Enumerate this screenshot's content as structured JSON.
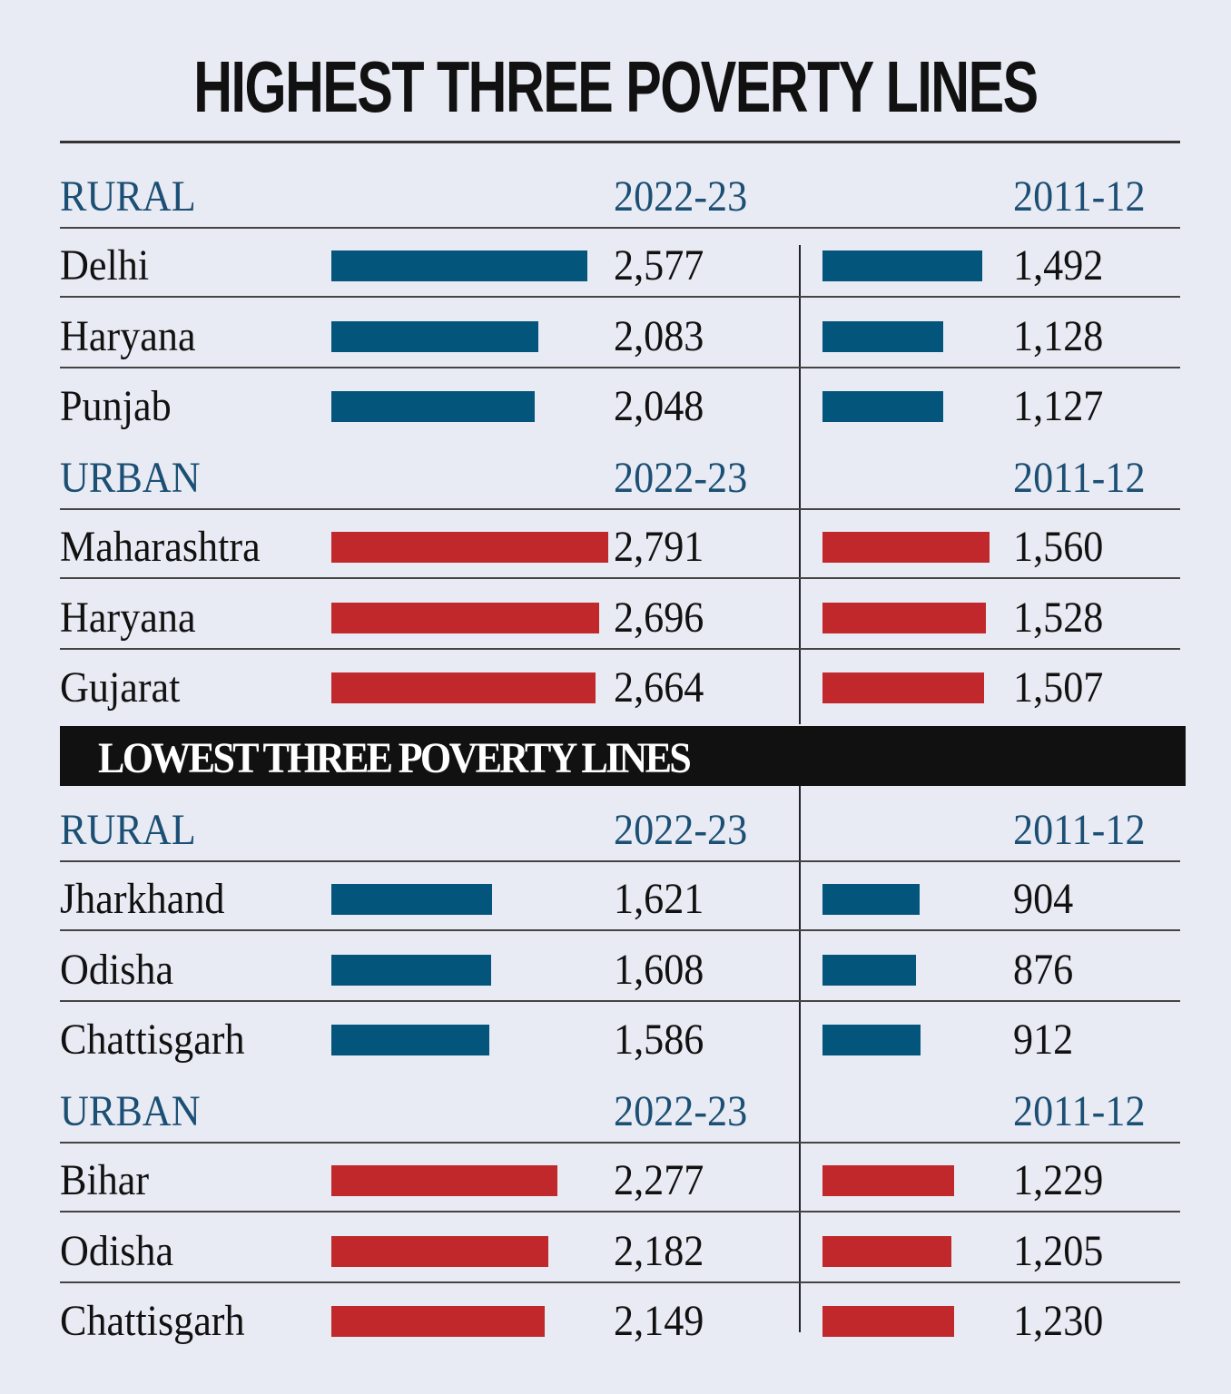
{
  "title": "HIGHEST THREE POVERTY LINES",
  "banner": "LOWEST THREE POVERTY LINES",
  "colors": {
    "rural": "#04557c",
    "urban": "#c0282b",
    "header_text": "#1c4f74",
    "banner_bg": "#111111"
  },
  "chart_data": {
    "type": "bar",
    "columns": [
      "2022-23",
      "2011-12"
    ],
    "sections": [
      {
        "group": "highest",
        "label": "RURAL",
        "col1": "2022-23",
        "col2": "2011-12",
        "rows": [
          {
            "state": "Delhi",
            "v2022": 2577,
            "v2011": 1492,
            "t2022": "2,577",
            "t2011": "1,492"
          },
          {
            "state": "Haryana",
            "v2022": 2083,
            "v2011": 1128,
            "t2022": "2,083",
            "t2011": "1,128"
          },
          {
            "state": "Punjab",
            "v2022": 2048,
            "v2011": 1127,
            "t2022": "2,048",
            "t2011": "1,127"
          }
        ]
      },
      {
        "group": "highest",
        "label": "URBAN",
        "col1": "2022-23",
        "col2": "2011-12",
        "rows": [
          {
            "state": "Maharashtra",
            "v2022": 2791,
            "v2011": 1560,
            "t2022": "2,791",
            "t2011": "1,560"
          },
          {
            "state": "Haryana",
            "v2022": 2696,
            "v2011": 1528,
            "t2022": "2,696",
            "t2011": "1,528"
          },
          {
            "state": "Gujarat",
            "v2022": 2664,
            "v2011": 1507,
            "t2022": "2,664",
            "t2011": "1,507"
          }
        ]
      },
      {
        "group": "lowest",
        "label": "RURAL",
        "col1": "2022-23",
        "col2": "2011-12",
        "rows": [
          {
            "state": "Jharkhand",
            "v2022": 1621,
            "v2011": 904,
            "t2022": "1,621",
            "t2011": "904"
          },
          {
            "state": "Odisha",
            "v2022": 1608,
            "v2011": 876,
            "t2022": "1,608",
            "t2011": "876"
          },
          {
            "state": "Chattisgarh",
            "v2022": 1586,
            "v2011": 912,
            "t2022": "1,586",
            "t2011": "912"
          }
        ]
      },
      {
        "group": "lowest",
        "label": "URBAN",
        "col1": "2022-23",
        "col2": "2011-12",
        "rows": [
          {
            "state": "Bihar",
            "v2022": 2277,
            "v2011": 1229,
            "t2022": "2,277",
            "t2011": "1,229"
          },
          {
            "state": "Odisha",
            "v2022": 2182,
            "v2011": 1205,
            "t2022": "2,182",
            "t2011": "1,205"
          },
          {
            "state": "Chattisgarh",
            "v2022": 2149,
            "v2011": 1230,
            "t2022": "2,149",
            "t2011": "1,230"
          }
        ]
      }
    ]
  }
}
